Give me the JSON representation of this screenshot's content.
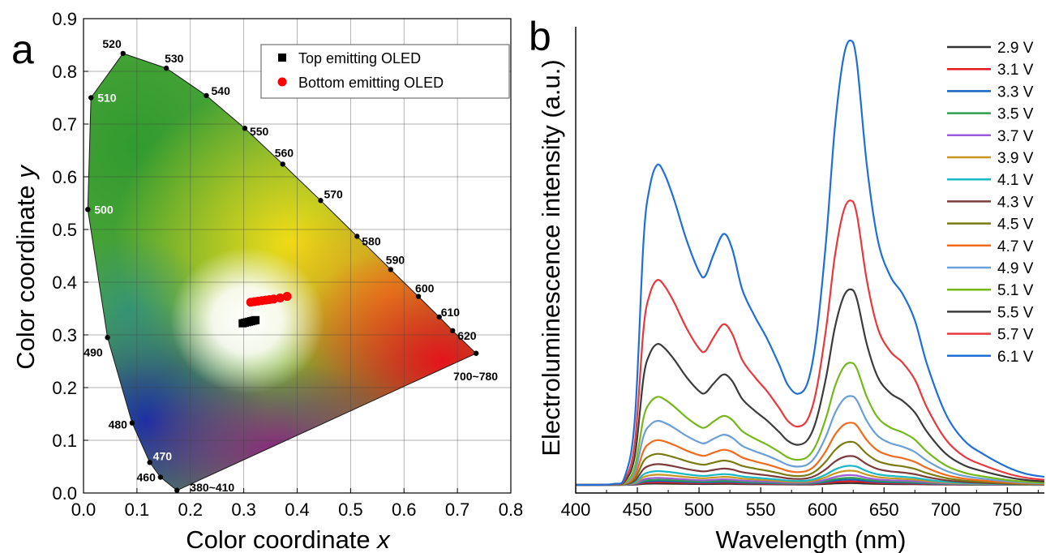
{
  "panels": [
    {
      "panel_label": "a",
      "chart_data": {
        "type": "scatter",
        "xlabel": "Color coordinate ",
        "xlabel_var": "x",
        "ylabel": "Color coordinate ",
        "ylabel_var": "y",
        "xlim": [
          0.0,
          0.8
        ],
        "ylim": [
          0.0,
          0.9
        ],
        "x_ticks": [
          "0.0",
          "0.1",
          "0.2",
          "0.3",
          "0.4",
          "0.5",
          "0.6",
          "0.7",
          "0.8"
        ],
        "y_ticks": [
          "0.0",
          "0.1",
          "0.2",
          "0.3",
          "0.4",
          "0.5",
          "0.6",
          "0.7",
          "0.8",
          "0.9"
        ],
        "grid": true,
        "legend_position": "top-right",
        "spectral_locus": [
          {
            "label": "380~410",
            "x": 0.175,
            "y": 0.005
          },
          {
            "label": "460",
            "x": 0.144,
            "y": 0.03
          },
          {
            "label": "470",
            "x": 0.124,
            "y": 0.058
          },
          {
            "label": "480",
            "x": 0.091,
            "y": 0.133
          },
          {
            "label": "490",
            "x": 0.045,
            "y": 0.295
          },
          {
            "label": "500",
            "x": 0.008,
            "y": 0.538
          },
          {
            "label": "510",
            "x": 0.014,
            "y": 0.75
          },
          {
            "label": "520",
            "x": 0.074,
            "y": 0.834
          },
          {
            "label": "530",
            "x": 0.155,
            "y": 0.806
          },
          {
            "label": "540",
            "x": 0.23,
            "y": 0.754
          },
          {
            "label": "550",
            "x": 0.302,
            "y": 0.692
          },
          {
            "label": "560",
            "x": 0.373,
            "y": 0.624
          },
          {
            "label": "570",
            "x": 0.444,
            "y": 0.555
          },
          {
            "label": "580",
            "x": 0.512,
            "y": 0.487
          },
          {
            "label": "590",
            "x": 0.575,
            "y": 0.424
          },
          {
            "label": "600",
            "x": 0.627,
            "y": 0.373
          },
          {
            "label": "610",
            "x": 0.666,
            "y": 0.334
          },
          {
            "label": "620",
            "x": 0.691,
            "y": 0.308
          },
          {
            "label": "700~780",
            "x": 0.735,
            "y": 0.265
          }
        ],
        "series": [
          {
            "name": "Top emitting OLED",
            "marker": "square",
            "color": "#000000",
            "x": [
              0.298,
              0.302,
              0.306,
              0.31,
              0.314,
              0.318,
              0.322
            ],
            "y": [
              0.322,
              0.323,
              0.324,
              0.325,
              0.326,
              0.327,
              0.328
            ]
          },
          {
            "name": "Bottom emitting OLED",
            "marker": "circle",
            "color": "#ff0000",
            "x": [
              0.313,
              0.32,
              0.327,
              0.334,
              0.341,
              0.348,
              0.356,
              0.368,
              0.381
            ],
            "y": [
              0.362,
              0.363,
              0.364,
              0.365,
              0.366,
              0.367,
              0.368,
              0.37,
              0.373
            ]
          }
        ]
      }
    },
    {
      "panel_label": "b",
      "chart_data": {
        "type": "line",
        "xlabel": "Wavelength (nm)",
        "ylabel": "Electroluminescence intensity (a.u.)",
        "xlim": [
          400,
          780
        ],
        "ylim": [
          0,
          1.0
        ],
        "x_ticks": [
          "400",
          "450",
          "500",
          "550",
          "600",
          "650",
          "700",
          "750"
        ],
        "grid": false,
        "legend_position": "top-right",
        "peak_nm": [
          466,
          520,
          623
        ],
        "series": [
          {
            "name": "2.9 V",
            "color": "#333333",
            "scale": 0.004
          },
          {
            "name": "3.1 V",
            "color": "#e41a1c",
            "scale": 0.008
          },
          {
            "name": "3.3 V",
            "color": "#1565c0",
            "scale": 0.012
          },
          {
            "name": "3.5 V",
            "color": "#2e9e4f",
            "scale": 0.016
          },
          {
            "name": "3.7 V",
            "color": "#9c5bd8",
            "scale": 0.022
          },
          {
            "name": "3.9 V",
            "color": "#c8961e",
            "scale": 0.032
          },
          {
            "name": "4.1 V",
            "color": "#19b8c7",
            "scale": 0.043
          },
          {
            "name": "4.3 V",
            "color": "#7b3b3b",
            "scale": 0.065
          },
          {
            "name": "4.5 V",
            "color": "#7a7a12",
            "scale": 0.097
          },
          {
            "name": "4.7 V",
            "color": "#f26b1d",
            "scale": 0.14
          },
          {
            "name": "4.9 V",
            "color": "#6a9fd8",
            "scale": 0.2
          },
          {
            "name": "5.1 V",
            "color": "#74b81a",
            "scale": 0.275
          },
          {
            "name": "5.5 V",
            "color": "#3b3b3b",
            "scale": 0.44
          },
          {
            "name": "5.7 V",
            "color": "#e8383d",
            "scale": 0.64
          },
          {
            "name": "6.1 V",
            "color": "#1f6fd6",
            "scale": 1.0
          }
        ]
      }
    }
  ]
}
